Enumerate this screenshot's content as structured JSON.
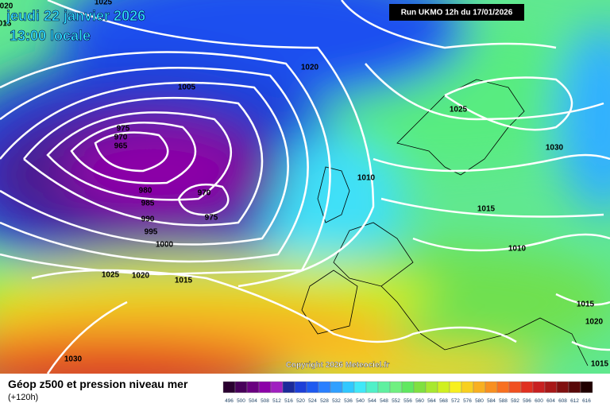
{
  "header": {
    "date": "jeudi 22 janvier 2026",
    "time": "13:00 locale",
    "run": "Run UKMO 12h du 17/01/2026"
  },
  "isobar_labels": [
    "020",
    "015",
    "1025",
    "1020",
    "1005",
    "975",
    "970",
    "965",
    "980",
    "985",
    "990",
    "995",
    "1000",
    "970",
    "975",
    "1010",
    "1025",
    "1030",
    "1015",
    "1010",
    "1025",
    "1020",
    "1015",
    "1030",
    "1015",
    "1020",
    "1015"
  ],
  "copyright": "Copyright 2026 Meteociel.fr",
  "footer": {
    "title": "Géop z500 et pression niveau mer",
    "subtitle": "(+120h)"
  },
  "scale": {
    "values": [
      496,
      500,
      504,
      508,
      512,
      516,
      520,
      524,
      528,
      532,
      536,
      540,
      544,
      548,
      552,
      556,
      560,
      564,
      568,
      572,
      576,
      580,
      584,
      588,
      592,
      596,
      600,
      604,
      608,
      612,
      616
    ],
    "colors": [
      "#2a0030",
      "#48005a",
      "#6a0080",
      "#8c00a8",
      "#a020c0",
      "#1c2a9a",
      "#1e40d8",
      "#1e5af0",
      "#2a80ff",
      "#30a0ff",
      "#30c8ff",
      "#40e8f8",
      "#50f0c8",
      "#60f0a0",
      "#70f080",
      "#60e860",
      "#80e040",
      "#a8e830",
      "#d0f020",
      "#f8f020",
      "#f8d020",
      "#f8b020",
      "#f89020",
      "#f87020",
      "#f05020",
      "#e03020",
      "#c82020",
      "#a81818",
      "#801010",
      "#580808",
      "#200000"
    ]
  }
}
